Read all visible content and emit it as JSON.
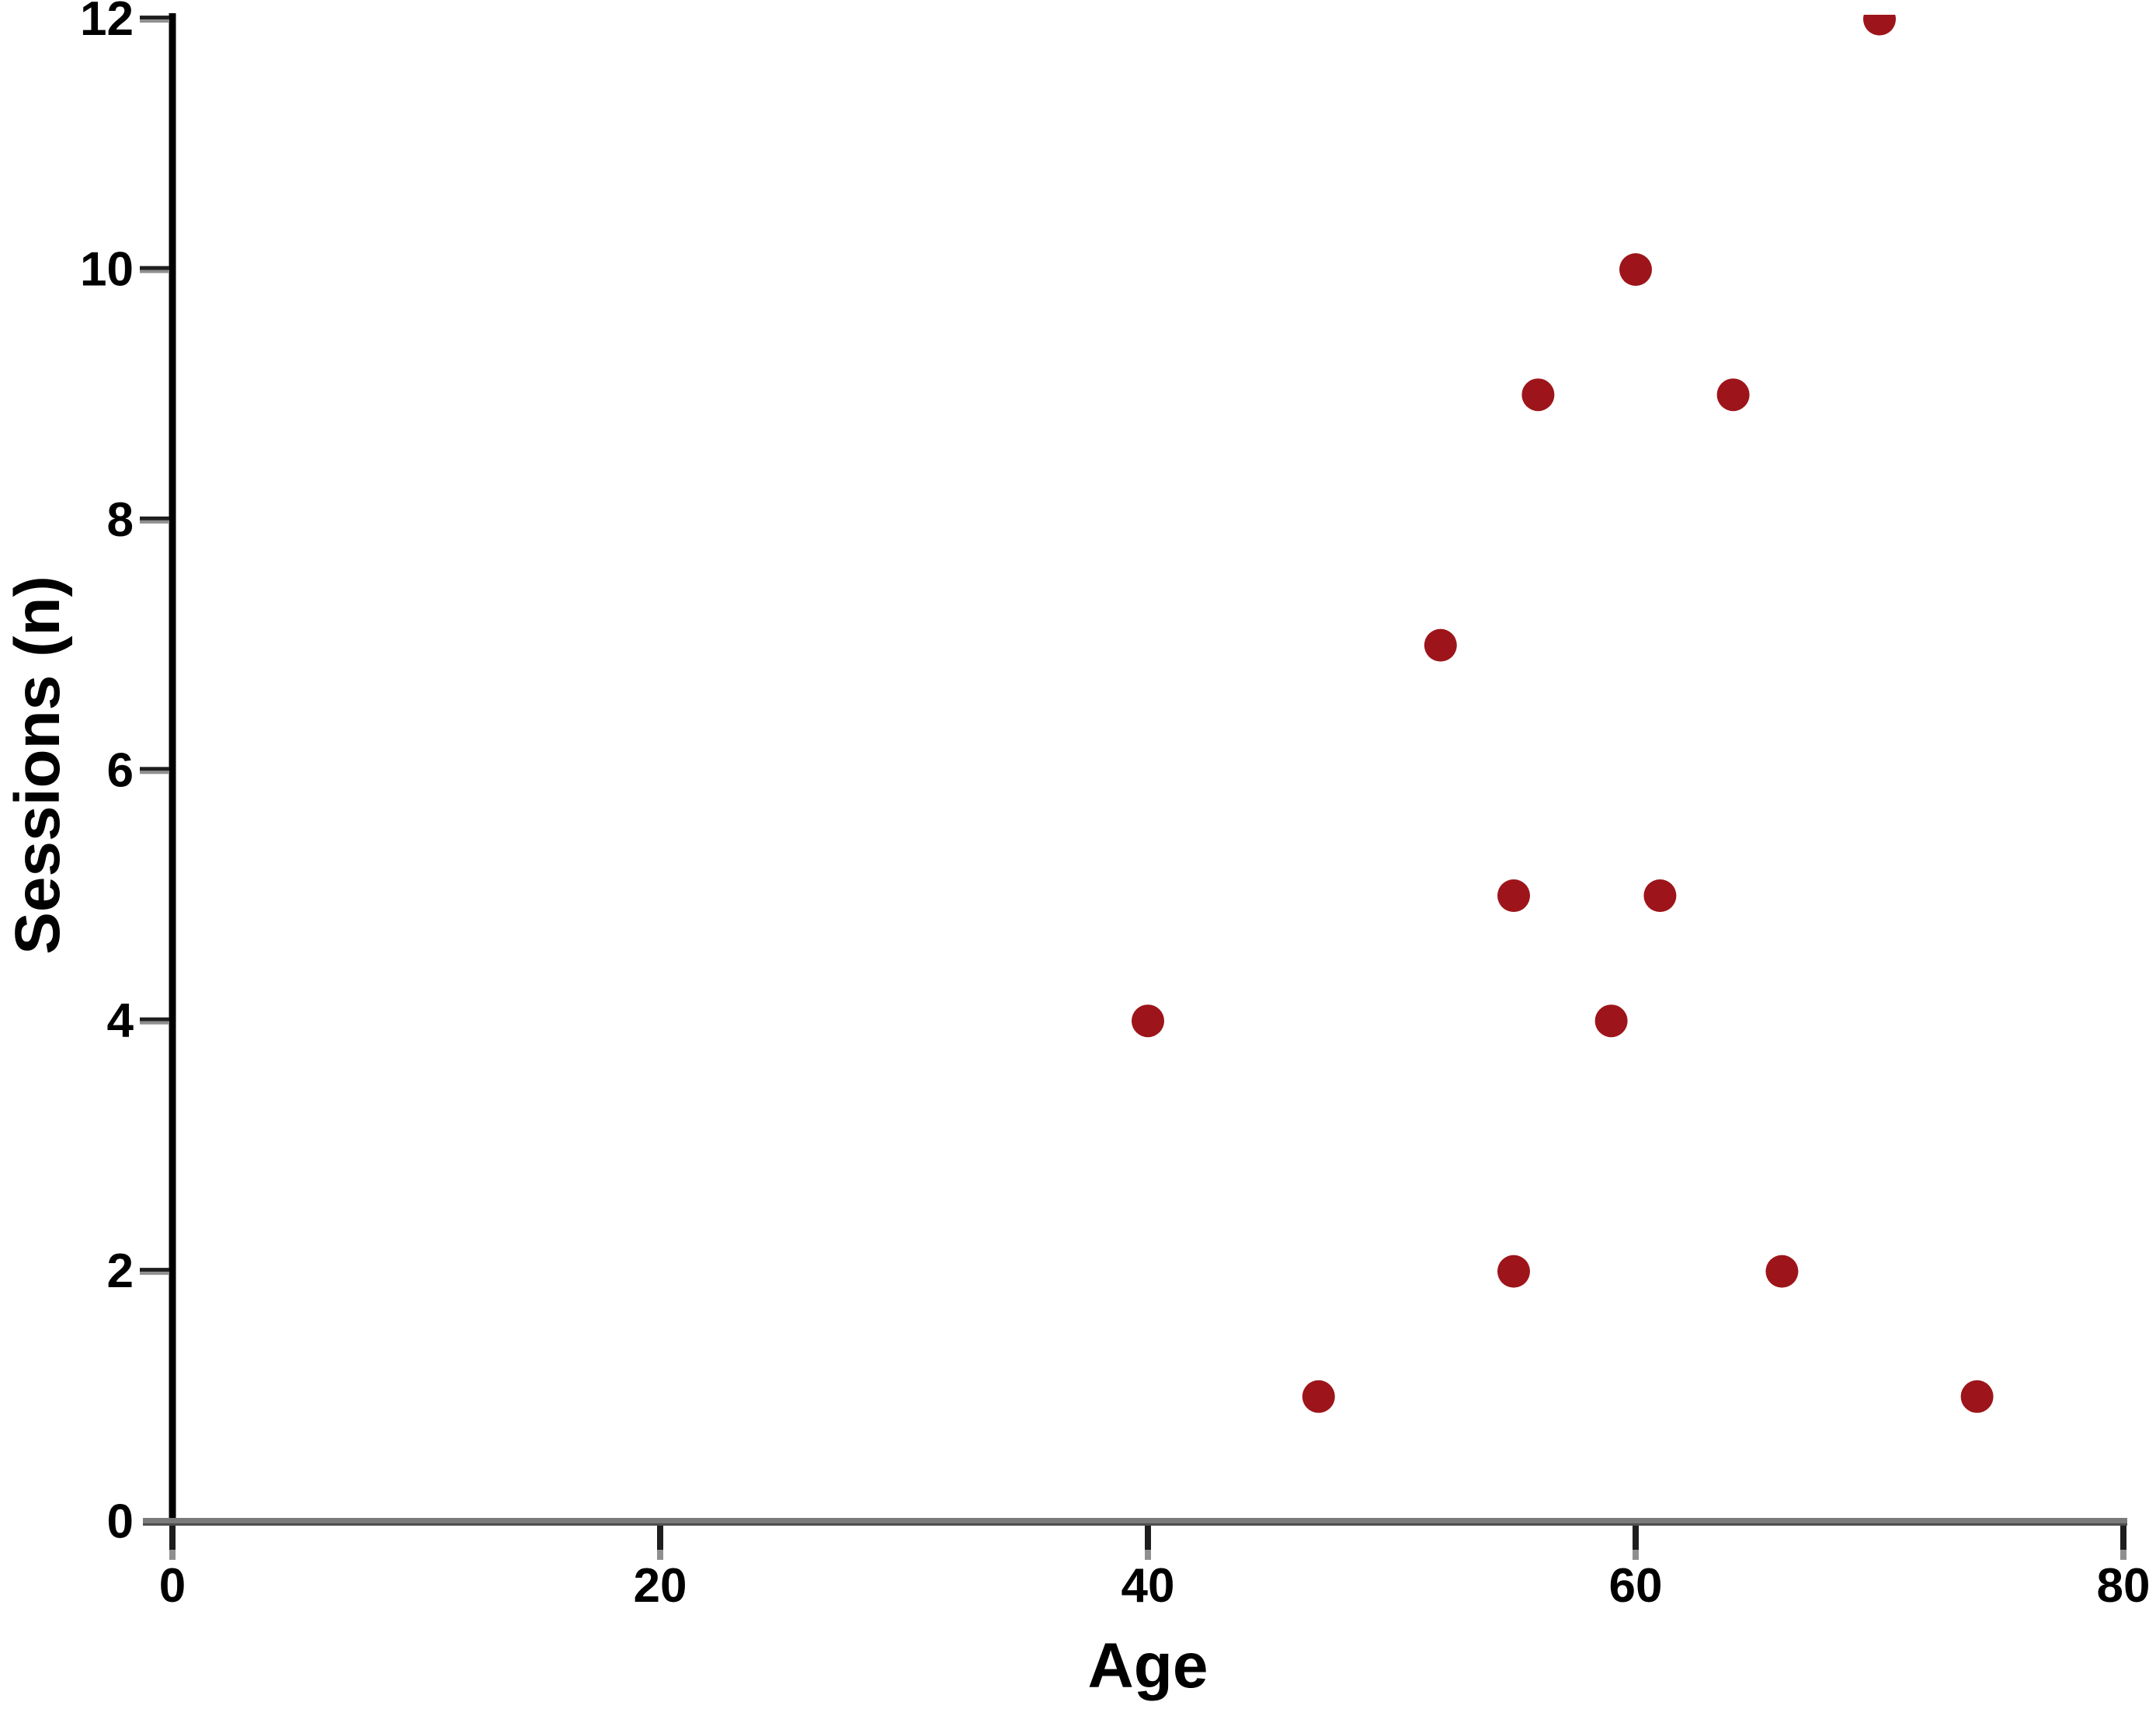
{
  "chart_data": {
    "type": "scatter",
    "xlabel": "Age",
    "ylabel": "Sessions (n)",
    "xlim": [
      0,
      80
    ],
    "ylim": [
      0,
      12
    ],
    "x_ticks": [
      "0",
      "20",
      "40",
      "60",
      "80"
    ],
    "y_ticks": [
      "0",
      "2",
      "4",
      "6",
      "8",
      "10",
      "12"
    ],
    "grid": false,
    "legend": "none",
    "marker": {
      "shape": "circle",
      "color": "#9D151A",
      "radius_px": 21
    },
    "points": [
      {
        "x": 40,
        "y": 4
      },
      {
        "x": 47,
        "y": 1
      },
      {
        "x": 52,
        "y": 7
      },
      {
        "x": 55,
        "y": 2
      },
      {
        "x": 55,
        "y": 5
      },
      {
        "x": 56,
        "y": 9
      },
      {
        "x": 59,
        "y": 4
      },
      {
        "x": 60,
        "y": 10
      },
      {
        "x": 61,
        "y": 5
      },
      {
        "x": 64,
        "y": 9
      },
      {
        "x": 66,
        "y": 2
      },
      {
        "x": 70,
        "y": 12
      },
      {
        "x": 74,
        "y": 1
      }
    ],
    "colors": {
      "point": "#9D151A",
      "y_axis_line": "#000000",
      "x_axis_line": "#7A7A7A",
      "x_axis_edge": "#4E4E4E",
      "tick_dark": "#1E1E1E",
      "tick_gray": "#8F8F8F",
      "text": "#000000"
    }
  }
}
